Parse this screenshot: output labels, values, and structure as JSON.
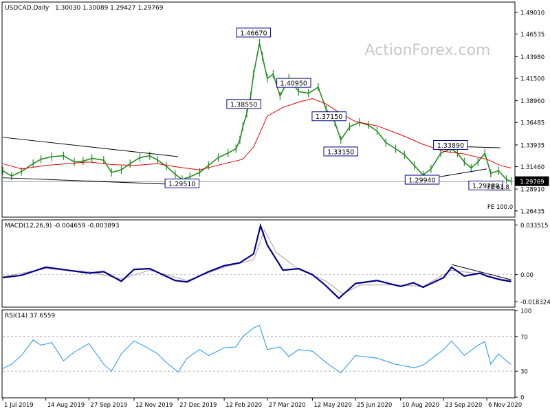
{
  "chart_data": [
    {
      "type": "line",
      "title": "USDCAD,Daily",
      "ohlc_label": "1.30030 1.30089 1.29427 1.29769",
      "watermark": "ActionForex.com",
      "last_price": 1.29769,
      "last_price_label": "1.29769",
      "ylim": [
        1.258,
        1.501
      ],
      "y_ticks": [
        {
          "v": 1.4901,
          "label": "1.49010"
        },
        {
          "v": 1.46535,
          "label": "1.46535"
        },
        {
          "v": 1.4398,
          "label": "1.43980"
        },
        {
          "v": 1.415,
          "label": "1.41500"
        },
        {
          "v": 1.3896,
          "label": "1.38960"
        },
        {
          "v": 1.36485,
          "label": "1.36485"
        },
        {
          "v": 1.33935,
          "label": "1.33935"
        },
        {
          "v": 1.3146,
          "label": "1.31460"
        },
        {
          "v": 1.2891,
          "label": "1.28910"
        },
        {
          "v": 1.26435,
          "label": "1.26435"
        }
      ],
      "x_labels": [
        "1 Jul 2019",
        "14 Aug 2019",
        "27 Sep 2019",
        "12 Nov 2019",
        "27 Dec 2019",
        "12 Feb 2020",
        "27 Mar 2020",
        "12 May 2020",
        "25 Jun 2020",
        "10 Aug 2020",
        "23 Sep 2020",
        "6 Nov 2020"
      ],
      "annotations": [
        {
          "text": "1.46670",
          "x": "13 Mar 2020",
          "y": 1.4667
        },
        {
          "text": "1.40950",
          "x": "23 Apr 2020",
          "y": 1.4095
        },
        {
          "text": "1.38550",
          "x": "3 Mar 2020",
          "y": 1.3855
        },
        {
          "text": "1.37150",
          "x": "29 May 2020",
          "y": 1.3715
        },
        {
          "text": "1.33150",
          "x": "10 Jun 2020",
          "y": 1.3315
        },
        {
          "text": "1.33890",
          "x": "30 Sep 2020",
          "y": 1.3389
        },
        {
          "text": "1.29510",
          "x": "31 Dec 2019",
          "y": 1.2951
        },
        {
          "text": "1.29940",
          "x": "1 Sep 2020",
          "y": 1.2994
        },
        {
          "text": "1.29280",
          "x": "5 Nov 2020",
          "y": 1.2928
        },
        {
          "text": "FE 61.8",
          "x": "Nov 2020",
          "y": 1.2915
        },
        {
          "text": "FE 100.0",
          "x": "Nov 2020",
          "y": 1.269
        }
      ],
      "series": [
        {
          "type": "ohlc-bars",
          "color": "#1e8b1e",
          "points": [
            [
              "1 Jul 2019",
              1.31
            ],
            [
              "10 Jul 2019",
              1.304
            ],
            [
              "20 Jul 2019",
              1.309
            ],
            [
              "1 Aug 2019",
              1.318
            ],
            [
              "9 Aug 2019",
              1.323
            ],
            [
              "20 Aug 2019",
              1.326
            ],
            [
              "1 Sep 2019",
              1.327
            ],
            [
              "12 Sep 2019",
              1.32
            ],
            [
              "21 Sep 2019",
              1.321
            ],
            [
              "30 Sep 2019",
              1.324
            ],
            [
              "12 Oct 2019",
              1.322
            ],
            [
              "20 Oct 2019",
              1.308
            ],
            [
              "30 Oct 2019",
              1.311
            ],
            [
              "8 Nov 2019",
              1.318
            ],
            [
              "18 Nov 2019",
              1.325
            ],
            [
              "28 Nov 2019",
              1.327
            ],
            [
              "6 Dec 2019",
              1.322
            ],
            [
              "15 Dec 2019",
              1.315
            ],
            [
              "24 Dec 2019",
              1.306
            ],
            [
              "31 Dec 2019",
              1.3
            ],
            [
              "8 Jan 2020",
              1.303
            ],
            [
              "18 Jan 2020",
              1.308
            ],
            [
              "27 Jan 2020",
              1.316
            ],
            [
              "6 Feb 2020",
              1.325
            ],
            [
              "16 Feb 2020",
              1.33
            ],
            [
              "24 Feb 2020",
              1.335
            ],
            [
              "28 Feb 2020",
              1.345
            ],
            [
              "2 Mar 2020",
              1.36
            ],
            [
              "6 Mar 2020",
              1.375
            ],
            [
              "10 Mar 2020",
              1.395
            ],
            [
              "13 Mar 2020",
              1.42
            ],
            [
              "19 Mar 2020",
              1.455
            ],
            [
              "22 Mar 2020",
              1.44
            ],
            [
              "27 Mar 2020",
              1.415
            ],
            [
              "2 Apr 2020",
              1.42
            ],
            [
              "9 Apr 2020",
              1.395
            ],
            [
              "18 Apr 2020",
              1.415
            ],
            [
              "28 Apr 2020",
              1.4
            ],
            [
              "8 May 2020",
              1.398
            ],
            [
              "18 May 2020",
              1.405
            ],
            [
              "26 May 2020",
              1.38
            ],
            [
              "4 Jun 2020",
              1.365
            ],
            [
              "10 Jun 2020",
              1.345
            ],
            [
              "19 Jun 2020",
              1.36
            ],
            [
              "29 Jun 2020",
              1.365
            ],
            [
              "8 Jul 2020",
              1.362
            ],
            [
              "17 Jul 2020",
              1.355
            ],
            [
              "26 Jul 2020",
              1.342
            ],
            [
              "5 Aug 2020",
              1.335
            ],
            [
              "14 Aug 2020",
              1.328
            ],
            [
              "24 Aug 2020",
              1.316
            ],
            [
              "2 Sep 2020",
              1.305
            ],
            [
              "10 Sep 2020",
              1.312
            ],
            [
              "20 Sep 2020",
              1.33
            ],
            [
              "30 Sep 2020",
              1.335
            ],
            [
              "7 Oct 2020",
              1.33
            ],
            [
              "14 Oct 2020",
              1.32
            ],
            [
              "21 Oct 2020",
              1.313
            ],
            [
              "28 Oct 2020",
              1.32
            ],
            [
              "4 Nov 2020",
              1.33
            ],
            [
              "10 Nov 2020",
              1.307
            ],
            [
              "18 Nov 2020",
              1.31
            ],
            [
              "26 Nov 2020",
              1.3
            ],
            [
              "1 Dec 2020",
              1.298
            ]
          ]
        },
        {
          "type": "moving-average",
          "color": "#e00000",
          "points": [
            [
              "1 Jul 2019",
              1.318
            ],
            [
              "20 Jul 2019",
              1.312
            ],
            [
              "14 Aug 2019",
              1.316
            ],
            [
              "27 Sep 2019",
              1.32
            ],
            [
              "20 Oct 2019",
              1.317
            ],
            [
              "12 Nov 2019",
              1.316
            ],
            [
              "6 Dec 2019",
              1.318
            ],
            [
              "27 Dec 2019",
              1.314
            ],
            [
              "18 Jan 2020",
              1.311
            ],
            [
              "12 Feb 2020",
              1.318
            ],
            [
              "2 Mar 2020",
              1.323
            ],
            [
              "13 Mar 2020",
              1.337
            ],
            [
              "27 Mar 2020",
              1.372
            ],
            [
              "12 Apr 2020",
              1.382
            ],
            [
              "28 Apr 2020",
              1.388
            ],
            [
              "12 May 2020",
              1.392
            ],
            [
              "26 May 2020",
              1.386
            ],
            [
              "10 Jun 2020",
              1.375
            ],
            [
              "25 Jun 2020",
              1.366
            ],
            [
              "17 Jul 2020",
              1.361
            ],
            [
              "10 Aug 2020",
              1.351
            ],
            [
              "2 Sep 2020",
              1.34
            ],
            [
              "23 Sep 2020",
              1.332
            ],
            [
              "14 Oct 2020",
              1.329
            ],
            [
              "6 Nov 2020",
              1.323
            ],
            [
              "20 Nov 2020",
              1.316
            ],
            [
              "1 Dec 2020",
              1.313
            ]
          ]
        }
      ],
      "trend_lines": [
        {
          "color": "#000000",
          "from": [
            "1 Jul 2019",
            1.348
          ],
          "to": [
            "27 Dec 2019",
            1.326
          ]
        },
        {
          "color": "#000000",
          "from": [
            "1 Jul 2019",
            1.302
          ],
          "to": [
            "3 Jan 2020",
            1.294
          ]
        },
        {
          "color": "#000000",
          "from": [
            "2 Sep 2020",
            1.3
          ],
          "to": [
            "6 Nov 2020",
            1.312
          ]
        },
        {
          "color": "#000000",
          "from": [
            "23 Sep 2020",
            1.338
          ],
          "to": [
            "20 Nov 2020",
            1.336
          ]
        },
        {
          "color": "#000000",
          "from": [
            "6 Nov 2020",
            1.288
          ],
          "to": [
            "1 Dec 2020",
            1.288
          ]
        }
      ]
    },
    {
      "type": "line",
      "title": "MACD(12,26,9) -0.004659 -0.003893",
      "ylim": [
        -0.0215,
        0.0365
      ],
      "y_ticks": [
        {
          "v": 0.033515,
          "label": "0.033515"
        },
        {
          "v": 0.0,
          "label": "0.00"
        },
        {
          "v": -0.018324,
          "label": "-0.018324"
        }
      ],
      "series": [
        {
          "name": "MACD",
          "color": "#00008b",
          "points": [
            [
              "1 Jul 2019",
              -0.002
            ],
            [
              "20 Jul 2019",
              -0.0005
            ],
            [
              "14 Aug 2019",
              0.005
            ],
            [
              "27 Sep 2019",
              0.001
            ],
            [
              "12 Oct 2019",
              0.002
            ],
            [
              "30 Oct 2019",
              -0.0045
            ],
            [
              "12 Nov 2019",
              0.0035
            ],
            [
              "28 Nov 2019",
              0.004
            ],
            [
              "24 Dec 2019",
              -0.004
            ],
            [
              "5 Jan 2020",
              -0.005
            ],
            [
              "27 Jan 2020",
              0.002
            ],
            [
              "12 Feb 2020",
              0.006
            ],
            [
              "28 Feb 2020",
              0.008
            ],
            [
              "13 Mar 2020",
              0.014
            ],
            [
              "20 Mar 2020",
              0.033
            ],
            [
              "27 Mar 2020",
              0.02
            ],
            [
              "12 Apr 2020",
              0.003
            ],
            [
              "28 Apr 2020",
              0.004
            ],
            [
              "12 May 2020",
              0.0
            ],
            [
              "25 May 2020",
              -0.007
            ],
            [
              "8 Jun 2020",
              -0.016
            ],
            [
              "25 Jun 2020",
              -0.006
            ],
            [
              "17 Jul 2020",
              -0.004
            ],
            [
              "10 Aug 2020",
              -0.008
            ],
            [
              "23 Aug 2020",
              -0.0055
            ],
            [
              "2 Sep 2020",
              -0.0085
            ],
            [
              "23 Sep 2020",
              -0.002
            ],
            [
              "1 Oct 2020",
              0.005
            ],
            [
              "14 Oct 2020",
              -0.001
            ],
            [
              "30 Oct 2020",
              0.001
            ],
            [
              "6 Nov 2020",
              -0.001
            ],
            [
              "20 Nov 2020",
              -0.0035
            ],
            [
              "1 Dec 2020",
              -0.0047
            ]
          ]
        },
        {
          "name": "Signal",
          "color": "#b09aa0",
          "points": [
            [
              "1 Jul 2019",
              -0.0015
            ],
            [
              "14 Aug 2019",
              0.004
            ],
            [
              "27 Sep 2019",
              0.002
            ],
            [
              "30 Oct 2019",
              -0.003
            ],
            [
              "28 Nov 2019",
              0.003
            ],
            [
              "5 Jan 2020",
              -0.004
            ],
            [
              "12 Feb 2020",
              0.005
            ],
            [
              "13 Mar 2020",
              0.01
            ],
            [
              "24 Mar 2020",
              0.03
            ],
            [
              "5 Apr 2020",
              0.015
            ],
            [
              "28 Apr 2020",
              0.0035
            ],
            [
              "25 May 2020",
              -0.004
            ],
            [
              "12 Jun 2020",
              -0.013
            ],
            [
              "30 Jun 2020",
              -0.007
            ],
            [
              "10 Aug 2020",
              -0.007
            ],
            [
              "2 Sep 2020",
              -0.008
            ],
            [
              "1 Oct 2020",
              0.003
            ],
            [
              "30 Oct 2020",
              0.0005
            ],
            [
              "20 Nov 2020",
              -0.003
            ],
            [
              "1 Dec 2020",
              -0.0039
            ]
          ]
        }
      ],
      "trend_lines": [
        {
          "color": "#000000",
          "from": [
            "1 Oct 2020",
            0.0068
          ],
          "to": [
            "1 Dec 2020",
            -0.0035
          ]
        }
      ]
    },
    {
      "type": "line",
      "title": "RSI(14) 37.6559",
      "ylim": [
        0,
        100
      ],
      "y_ticks": [
        {
          "v": 100,
          "label": "100"
        },
        {
          "v": 70,
          "label": "70"
        },
        {
          "v": 30,
          "label": "30"
        },
        {
          "v": 0,
          "label": "0"
        }
      ],
      "levels": [
        70,
        30
      ],
      "series": [
        {
          "name": "RSI",
          "color": "#1e90ff",
          "points": [
            [
              "1 Jul 2019",
              33
            ],
            [
              "10 Jul 2019",
              38
            ],
            [
              "20 Jul 2019",
              48
            ],
            [
              "1 Aug 2019",
              66
            ],
            [
              "9 Aug 2019",
              60
            ],
            [
              "20 Aug 2019",
              63
            ],
            [
              "1 Sep 2019",
              42
            ],
            [
              "12 Sep 2019",
              52
            ],
            [
              "27 Sep 2019",
              62
            ],
            [
              "12 Oct 2019",
              38
            ],
            [
              "20 Oct 2019",
              30
            ],
            [
              "30 Oct 2019",
              50
            ],
            [
              "12 Nov 2019",
              65
            ],
            [
              "24 Nov 2019",
              58
            ],
            [
              "6 Dec 2019",
              50
            ],
            [
              "15 Dec 2019",
              40
            ],
            [
              "27 Dec 2019",
              29
            ],
            [
              "5 Jan 2020",
              45
            ],
            [
              "18 Jan 2020",
              55
            ],
            [
              "27 Jan 2020",
              48
            ],
            [
              "12 Feb 2020",
              57
            ],
            [
              "24 Feb 2020",
              58
            ],
            [
              "2 Mar 2020",
              70
            ],
            [
              "13 Mar 2020",
              80
            ],
            [
              "19 Mar 2020",
              83
            ],
            [
              "27 Mar 2020",
              55
            ],
            [
              "9 Apr 2020",
              58
            ],
            [
              "18 Apr 2020",
              47
            ],
            [
              "28 Apr 2020",
              55
            ],
            [
              "12 May 2020",
              53
            ],
            [
              "26 May 2020",
              40
            ],
            [
              "10 Jun 2020",
              28
            ],
            [
              "25 Jun 2020",
              48
            ],
            [
              "17 Jul 2020",
              45
            ],
            [
              "5 Aug 2020",
              38
            ],
            [
              "24 Aug 2020",
              34
            ],
            [
              "2 Sep 2020",
              37
            ],
            [
              "23 Sep 2020",
              55
            ],
            [
              "1 Oct 2020",
              65
            ],
            [
              "14 Oct 2020",
              48
            ],
            [
              "28 Oct 2020",
              60
            ],
            [
              "4 Nov 2020",
              64
            ],
            [
              "10 Nov 2020",
              38
            ],
            [
              "18 Nov 2020",
              50
            ],
            [
              "26 Nov 2020",
              42
            ],
            [
              "1 Dec 2020",
              37.66
            ]
          ]
        }
      ]
    }
  ]
}
